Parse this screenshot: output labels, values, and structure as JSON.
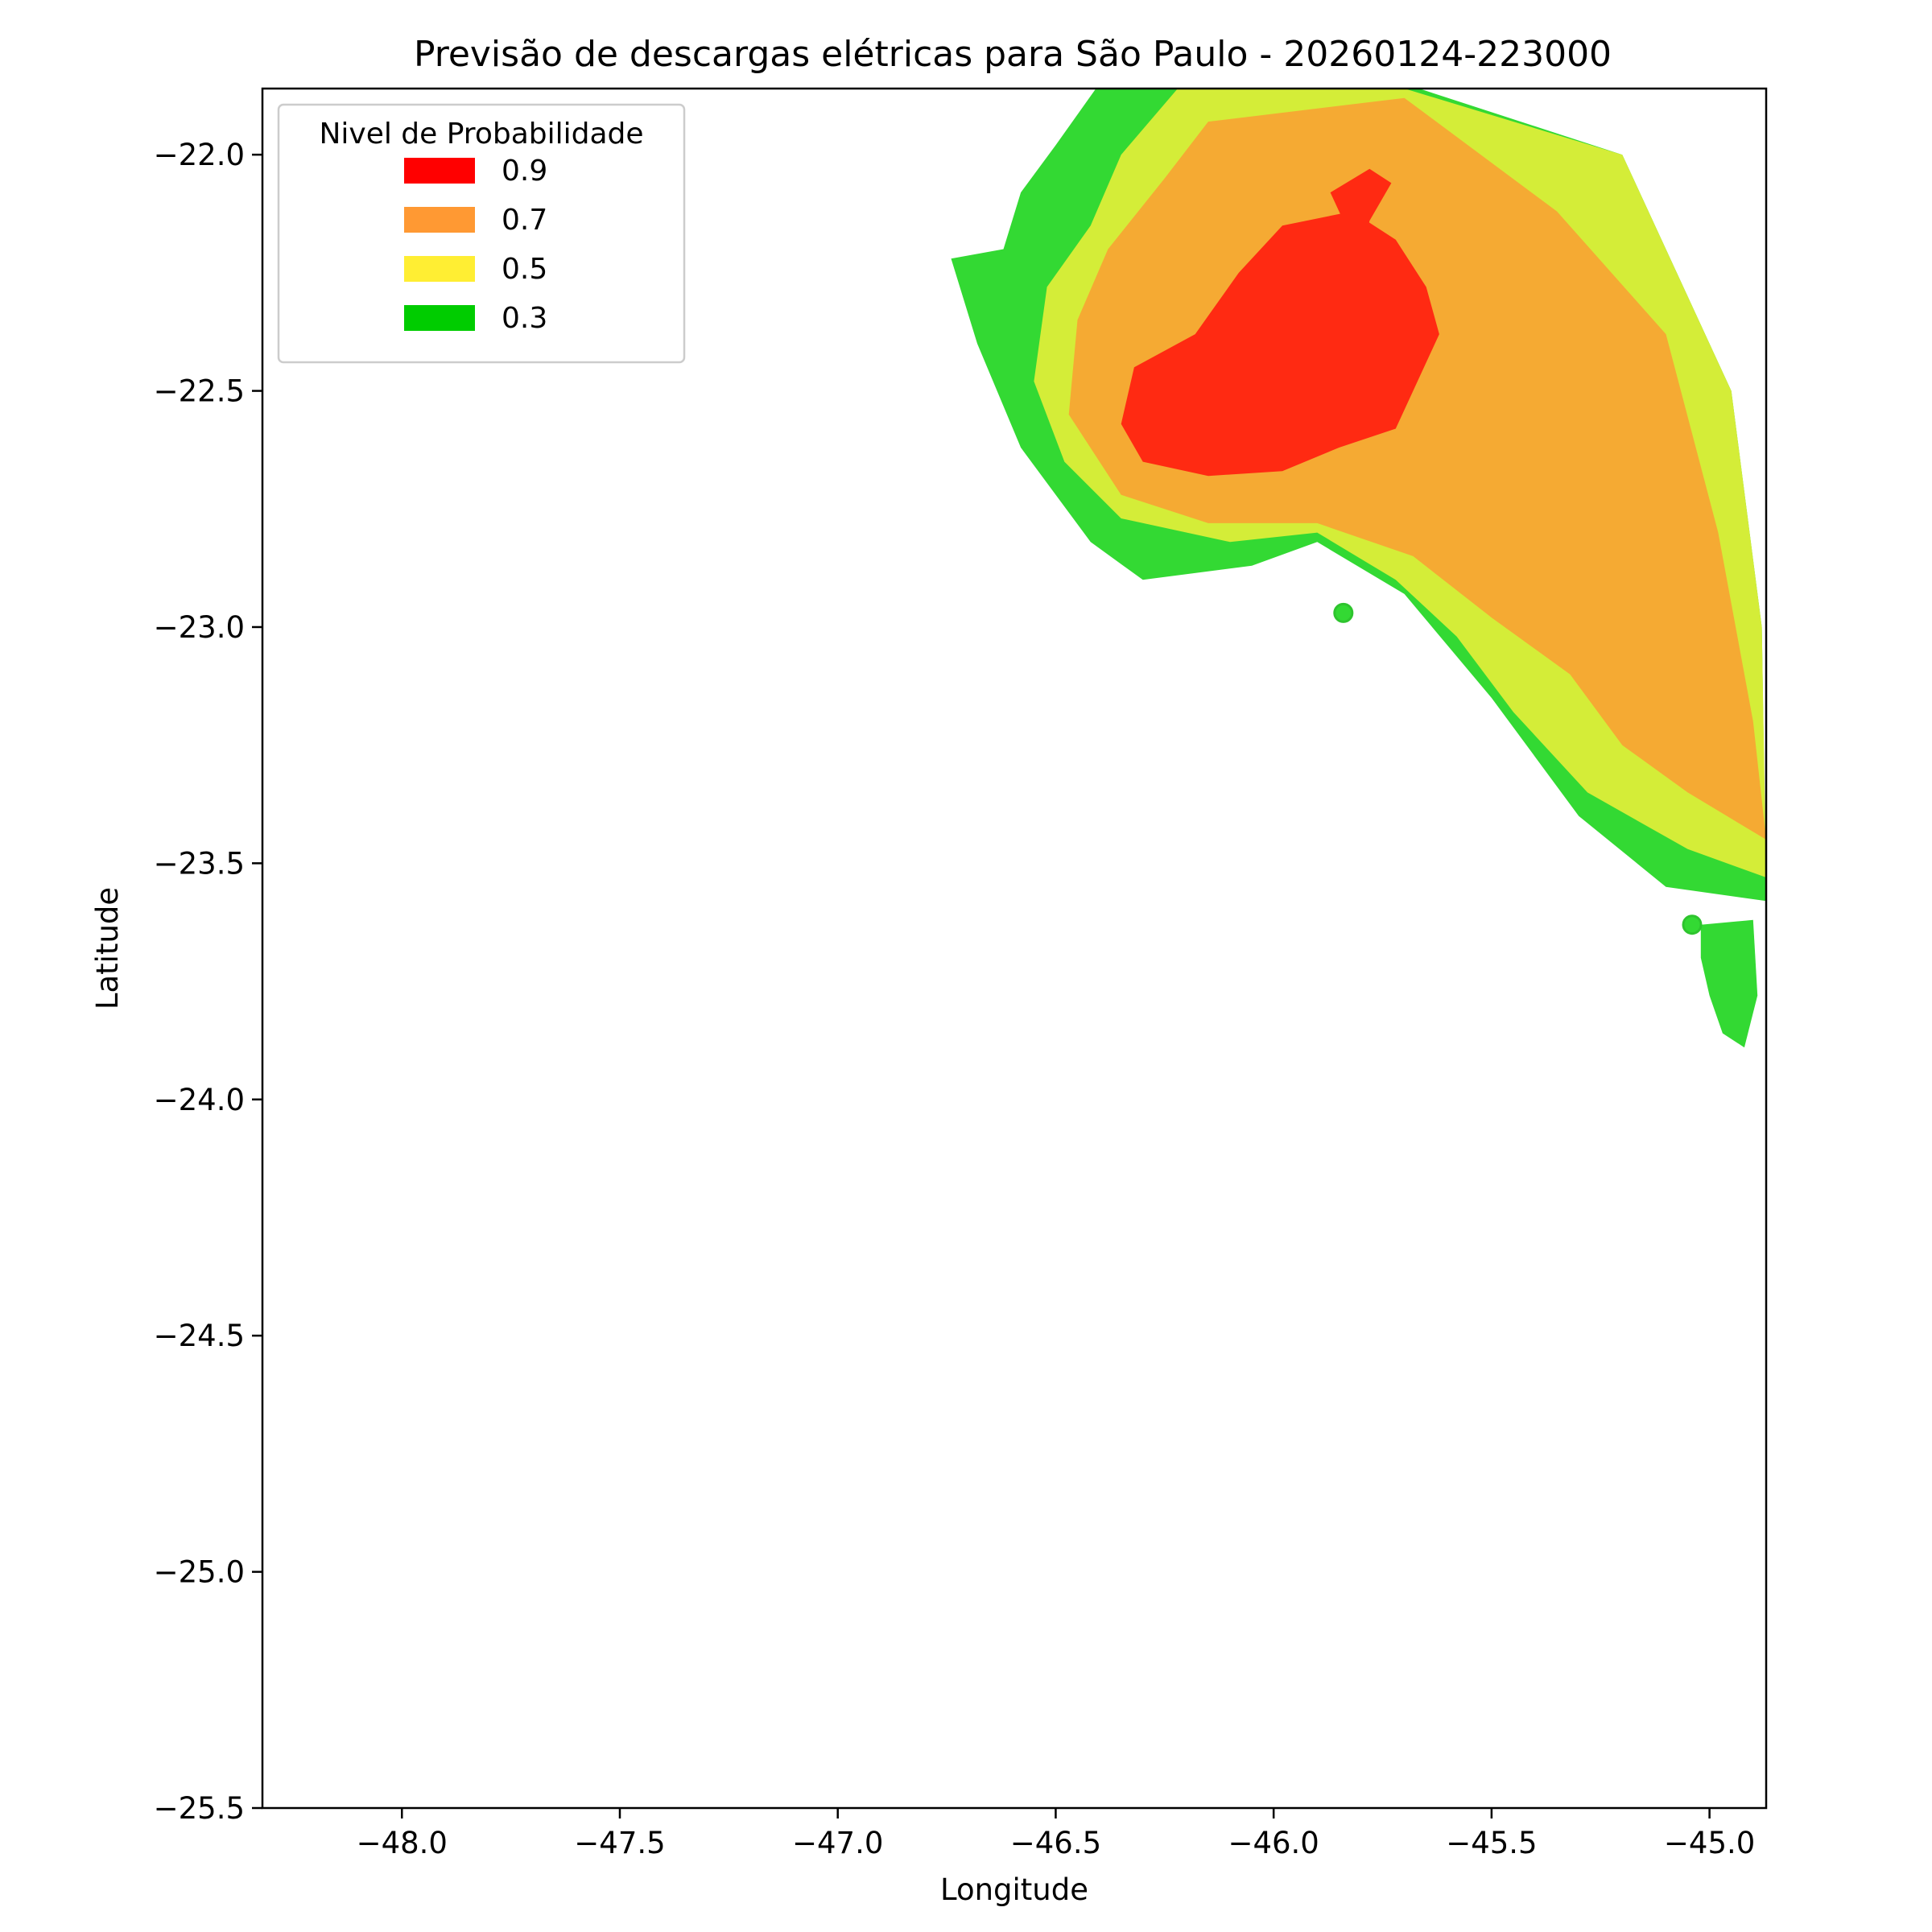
{
  "chart_data": {
    "type": "contour_map",
    "title": "Previsão de descargas elétricas para São Paulo - 20260124-223000",
    "xlabel": "Longitude",
    "ylabel": "Latitude",
    "xlim": [
      -48.32,
      -44.87
    ],
    "ylim": [
      -25.5,
      -21.86
    ],
    "xticks": [
      -48.0,
      -47.5,
      -47.0,
      -46.5,
      -46.0,
      -45.5,
      -45.0
    ],
    "xtick_labels": [
      "−48.0",
      "−47.5",
      "−47.0",
      "−46.5",
      "−46.0",
      "−45.5",
      "−45.0"
    ],
    "yticks": [
      -22.0,
      -22.5,
      -23.0,
      -23.5,
      -24.0,
      -24.5,
      -25.0,
      -25.5
    ],
    "ytick_labels": [
      "−22.0",
      "−22.5",
      "−23.0",
      "−23.5",
      "−24.0",
      "−24.5",
      "−25.0",
      "−25.5"
    ],
    "grid": false,
    "legend": {
      "title": "Nivel de Probabilidade",
      "placement": "top-left",
      "entries": [
        {
          "label": "0.9",
          "color": "#ff0000"
        },
        {
          "label": "0.7",
          "color": "#ff9933"
        },
        {
          "label": "0.5",
          "color": "#ffee33"
        },
        {
          "label": "0.3",
          "color": "#00cc00"
        }
      ]
    },
    "layers": [
      {
        "level": "0.3",
        "color": "#33d933",
        "polygons": [
          [
            [
              -46.4,
              -21.85
            ],
            [
              -45.7,
              -21.85
            ],
            [
              -45.2,
              -22.0
            ],
            [
              -44.95,
              -22.5
            ],
            [
              -44.88,
              -23.0
            ],
            [
              -44.87,
              -23.58
            ],
            [
              -45.1,
              -23.55
            ],
            [
              -45.3,
              -23.4
            ],
            [
              -45.5,
              -23.15
            ],
            [
              -45.7,
              -22.93
            ],
            [
              -45.9,
              -22.82
            ],
            [
              -46.05,
              -22.87
            ],
            [
              -46.3,
              -22.9
            ],
            [
              -46.42,
              -22.82
            ],
            [
              -46.58,
              -22.62
            ],
            [
              -46.68,
              -22.4
            ],
            [
              -46.74,
              -22.22
            ],
            [
              -46.62,
              -22.2
            ],
            [
              -46.58,
              -22.08
            ],
            [
              -46.5,
              -21.98
            ]
          ]
        ]
      },
      {
        "level": "0.5",
        "color": "#d4ed38",
        "polygons": [
          [
            [
              -46.22,
              -21.86
            ],
            [
              -45.7,
              -21.86
            ],
            [
              -45.2,
              -22.0
            ],
            [
              -44.95,
              -22.5
            ],
            [
              -44.88,
              -23.0
            ],
            [
              -44.87,
              -23.53
            ],
            [
              -45.05,
              -23.47
            ],
            [
              -45.28,
              -23.35
            ],
            [
              -45.45,
              -23.18
            ],
            [
              -45.58,
              -23.02
            ],
            [
              -45.72,
              -22.9
            ],
            [
              -45.9,
              -22.8
            ],
            [
              -46.1,
              -22.82
            ],
            [
              -46.35,
              -22.77
            ],
            [
              -46.48,
              -22.65
            ],
            [
              -46.55,
              -22.48
            ],
            [
              -46.52,
              -22.28
            ],
            [
              -46.42,
              -22.15
            ],
            [
              -46.35,
              -22.0
            ]
          ]
        ]
      },
      {
        "level": "0.7",
        "color": "#f5aa33",
        "polygons": [
          [
            [
              -46.15,
              -21.93
            ],
            [
              -45.7,
              -21.88
            ],
            [
              -45.35,
              -22.12
            ],
            [
              -45.1,
              -22.38
            ],
            [
              -44.98,
              -22.8
            ],
            [
              -44.9,
              -23.2
            ],
            [
              -44.87,
              -23.45
            ],
            [
              -45.05,
              -23.35
            ],
            [
              -45.2,
              -23.25
            ],
            [
              -45.32,
              -23.1
            ],
            [
              -45.5,
              -22.98
            ],
            [
              -45.68,
              -22.85
            ],
            [
              -45.9,
              -22.78
            ],
            [
              -46.15,
              -22.78
            ],
            [
              -46.35,
              -22.72
            ],
            [
              -46.47,
              -22.55
            ],
            [
              -46.45,
              -22.35
            ],
            [
              -46.38,
              -22.2
            ],
            [
              -46.25,
              -22.05
            ]
          ]
        ]
      },
      {
        "level": "0.9",
        "color": "#ff2a12",
        "polygons": [
          [
            [
              -46.18,
              -22.38
            ],
            [
              -46.08,
              -22.25
            ],
            [
              -45.98,
              -22.15
            ],
            [
              -45.82,
              -22.12
            ],
            [
              -45.72,
              -22.18
            ],
            [
              -45.65,
              -22.28
            ],
            [
              -45.62,
              -22.38
            ],
            [
              -45.68,
              -22.5
            ],
            [
              -45.72,
              -22.58
            ],
            [
              -45.85,
              -22.62
            ],
            [
              -45.98,
              -22.67
            ],
            [
              -46.15,
              -22.68
            ],
            [
              -46.3,
              -22.65
            ],
            [
              -46.35,
              -22.57
            ],
            [
              -46.32,
              -22.45
            ]
          ],
          [
            [
              -45.87,
              -22.08
            ],
            [
              -45.78,
              -22.03
            ],
            [
              -45.73,
              -22.06
            ],
            [
              -45.78,
              -22.14
            ],
            [
              -45.8,
              -22.22
            ]
          ]
        ]
      },
      {
        "level": "0.3-islands",
        "color": "#33d933",
        "polygons": [
          [
            [
              -45.02,
              -23.63
            ],
            [
              -44.9,
              -23.62
            ],
            [
              -44.89,
              -23.78
            ],
            [
              -44.92,
              -23.89
            ],
            [
              -44.97,
              -23.86
            ],
            [
              -45.0,
              -23.78
            ],
            [
              -45.02,
              -23.7
            ]
          ]
        ]
      }
    ],
    "points": [
      {
        "lon": -45.84,
        "lat": -22.97,
        "level": "0.3"
      },
      {
        "lon": -45.04,
        "lat": -23.63,
        "level": "0.3"
      }
    ]
  }
}
